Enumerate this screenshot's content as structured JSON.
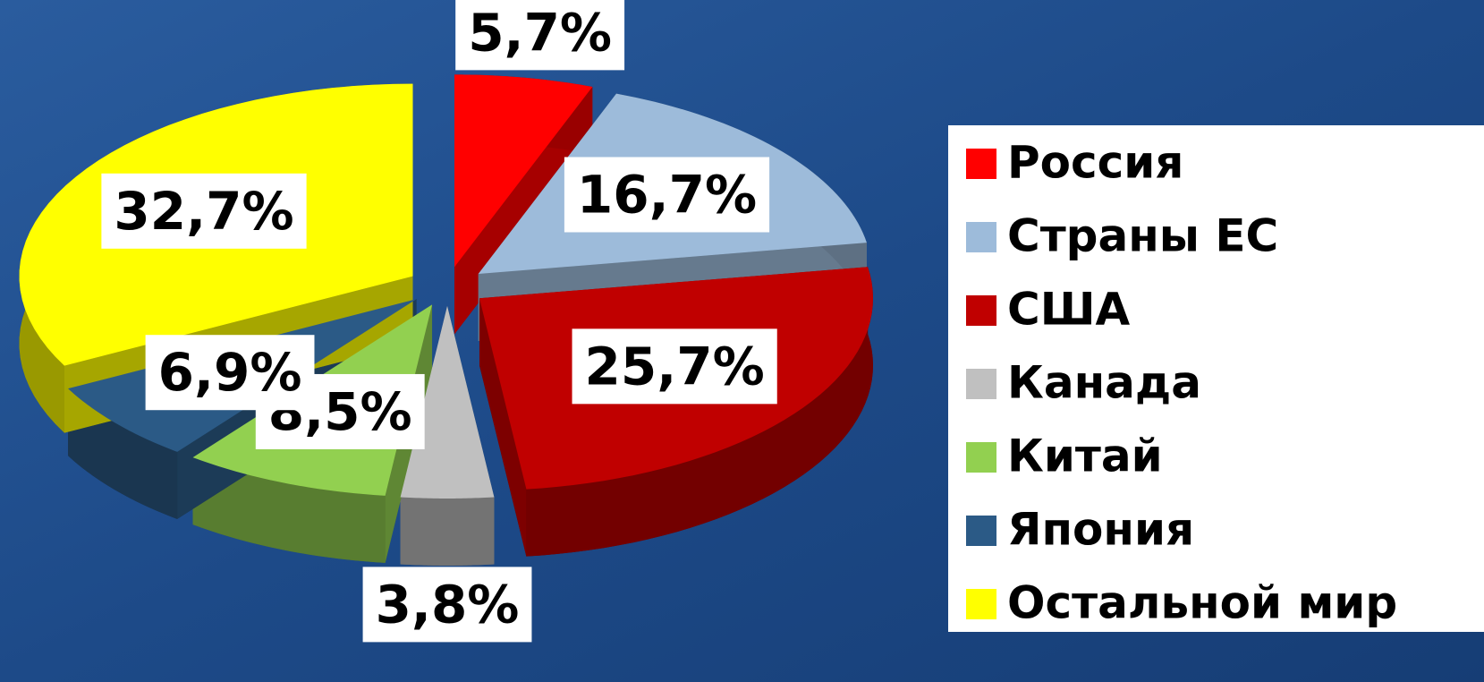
{
  "chart_data": {
    "type": "pie",
    "categories": [
      "Россия",
      "Страны ЕС",
      "США",
      "Канада",
      "Китай",
      "Япония",
      "Остальной мир"
    ],
    "values": [
      5.7,
      16.7,
      25.7,
      3.8,
      8.5,
      6.9,
      32.7
    ],
    "value_labels": [
      "5,7%",
      "16,7%",
      "25,7%",
      "3,8%",
      "8,5%",
      "6,9%",
      "32,7%"
    ],
    "colors": [
      "#ff0000",
      "#9dbbda",
      "#c00000",
      "#c0c0c0",
      "#92d050",
      "#2b5a86",
      "#ffff00"
    ]
  }
}
